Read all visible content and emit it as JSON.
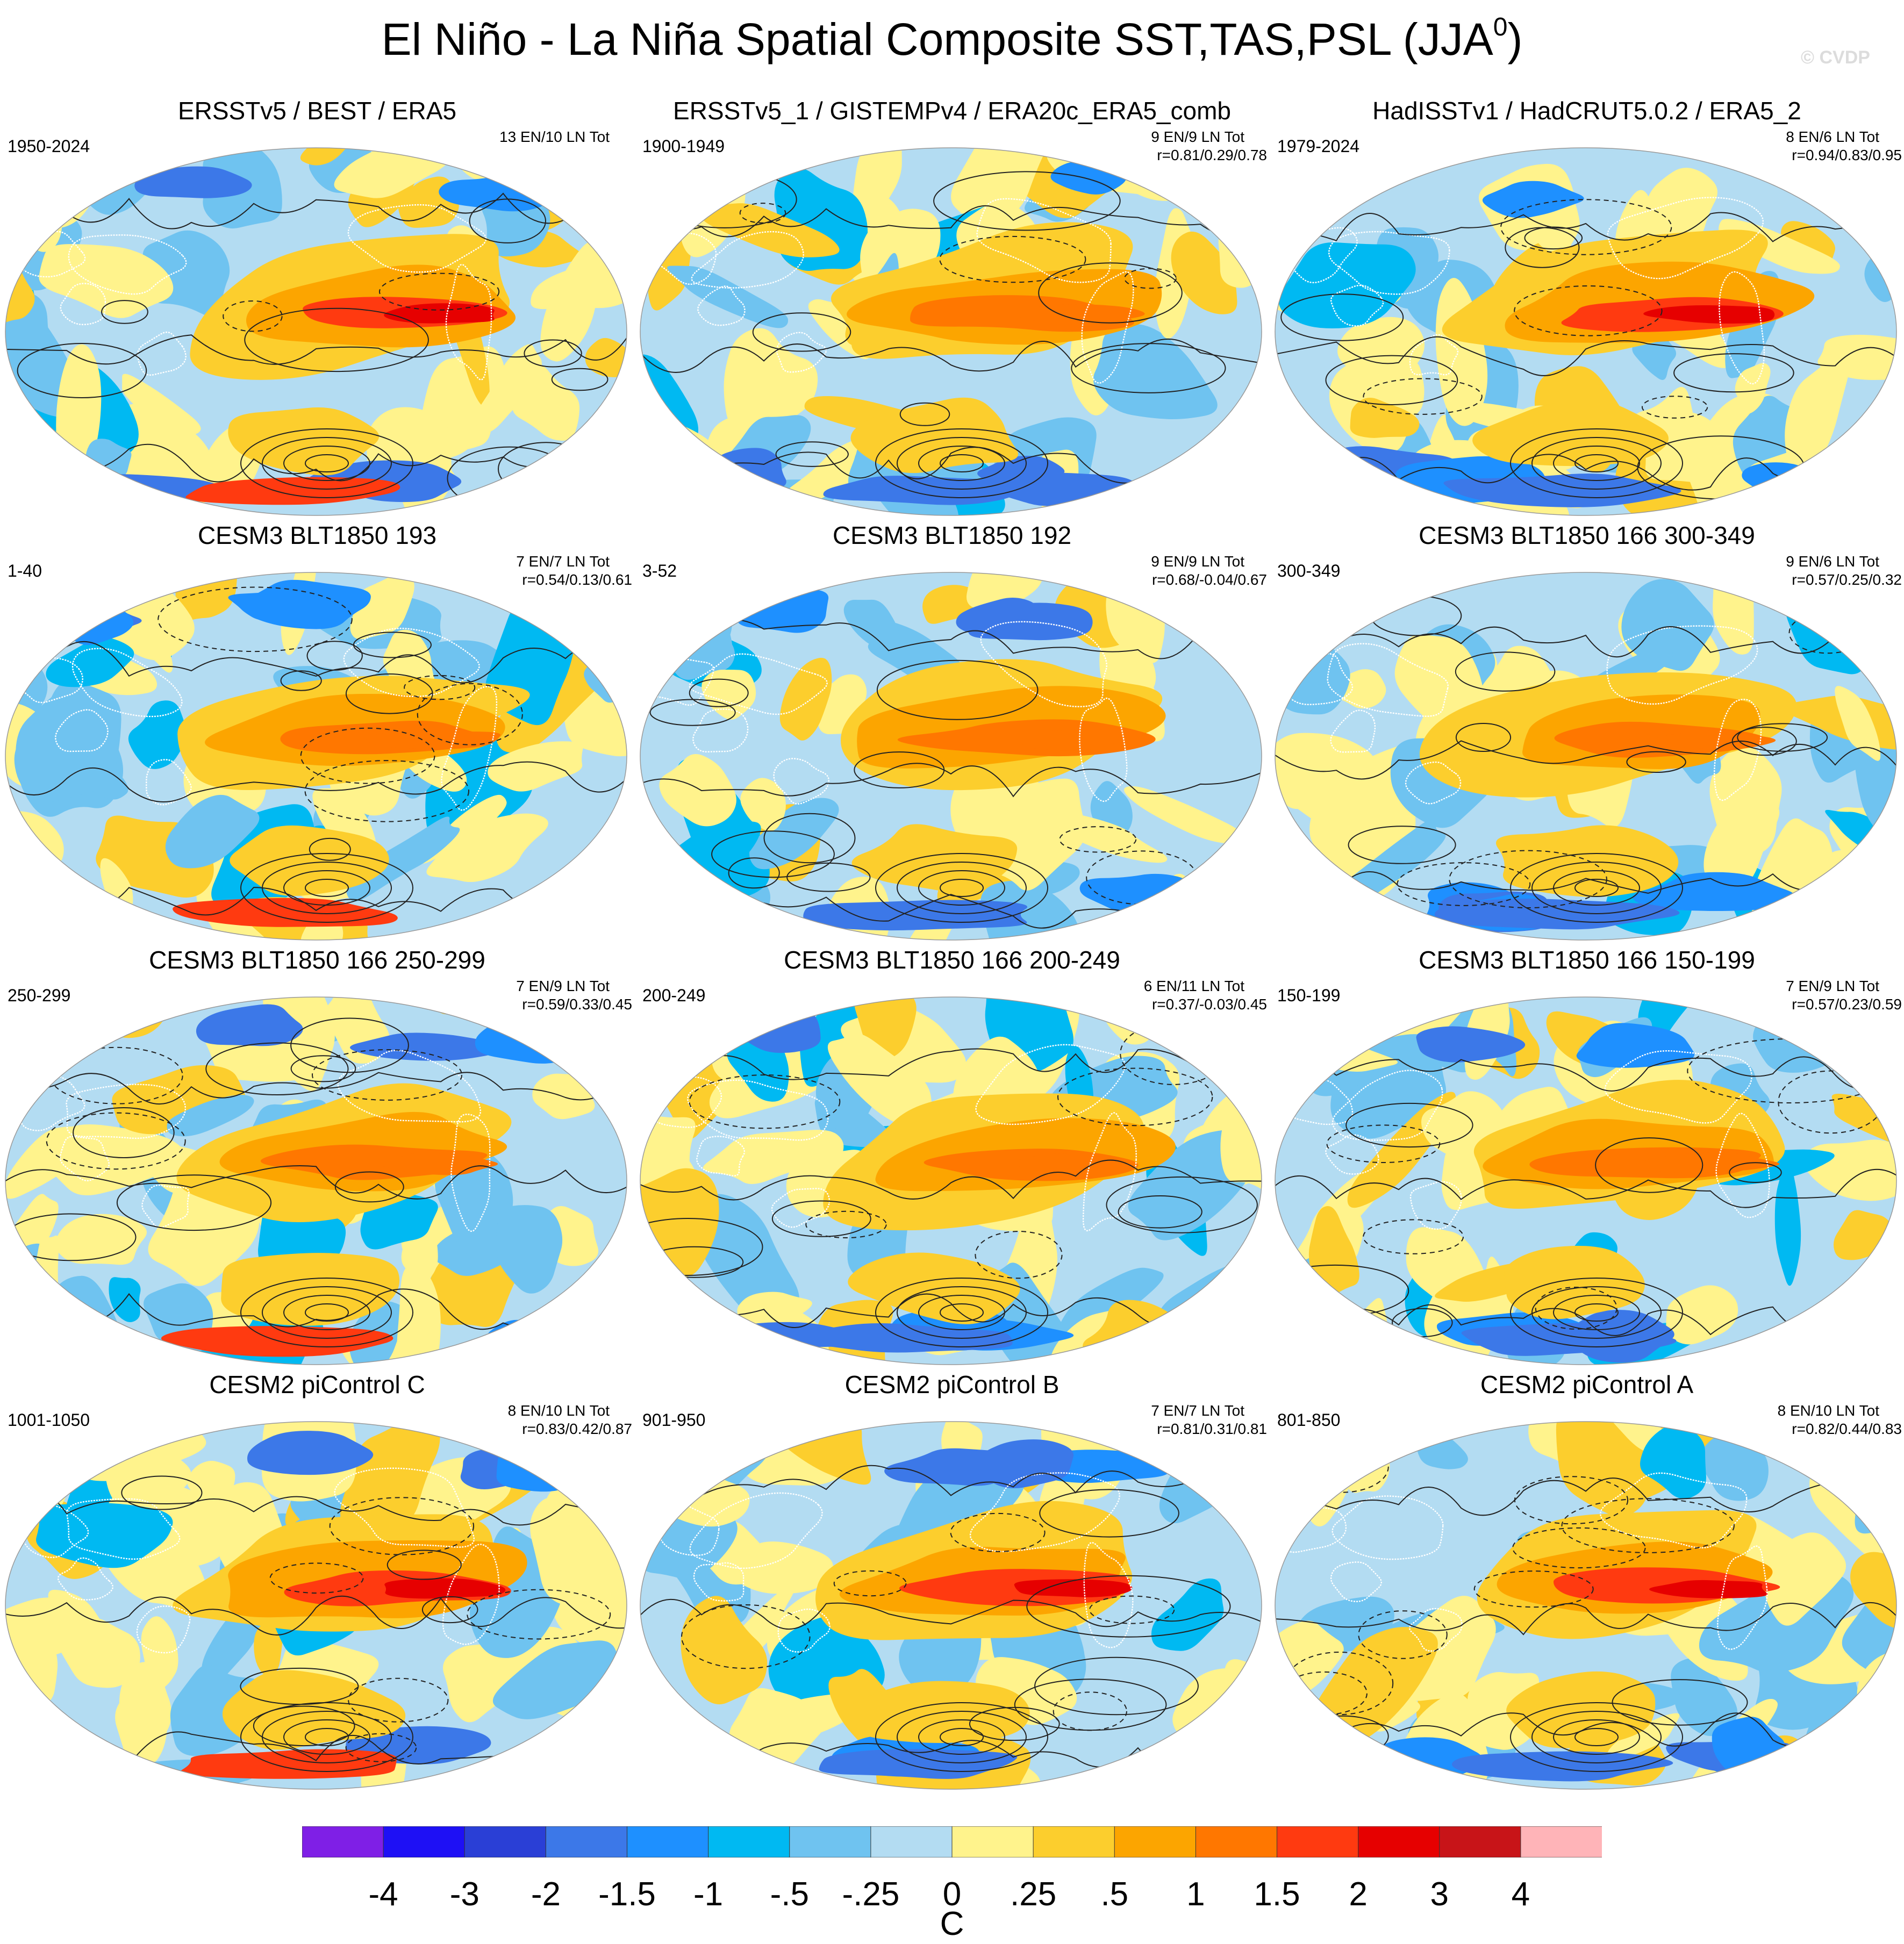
{
  "title": {
    "main": "El Niño - La Niña Spatial Composite SST,TAS,PSL (JJA",
    "superscript": "0",
    "close": ")"
  },
  "watermark": "© CVDP",
  "panels": [
    {
      "title": "ERSSTv5 / BEST / ERA5",
      "years": "1950-2024",
      "events": "13 EN/10 LN Tot",
      "corr": ""
    },
    {
      "title": "ERSSTv5_1 / GISTEMPv4 / ERA20c_ERA5_comb",
      "years": "1900-1949",
      "events": "9 EN/9 LN Tot",
      "corr": "r=0.81/0.29/0.78"
    },
    {
      "title": "HadISSTv1 / HadCRUT5.0.2 / ERA5_2",
      "years": "1979-2024",
      "events": "8 EN/6 LN Tot",
      "corr": "r=0.94/0.83/0.95"
    },
    {
      "title": "CESM3 BLT1850 193",
      "years": "1-40",
      "events": "7 EN/7 LN Tot",
      "corr": "r=0.54/0.13/0.61"
    },
    {
      "title": "CESM3 BLT1850 192",
      "years": "3-52",
      "events": "9 EN/9 LN Tot",
      "corr": "r=0.68/-0.04/0.67"
    },
    {
      "title": "CESM3 BLT1850 166 300-349",
      "years": "300-349",
      "events": "9 EN/6 LN Tot",
      "corr": "r=0.57/0.25/0.32"
    },
    {
      "title": "CESM3 BLT1850 166 250-299",
      "years": "250-299",
      "events": "7 EN/9 LN Tot",
      "corr": "r=0.59/0.33/0.45"
    },
    {
      "title": "CESM3 BLT1850 166 200-249",
      "years": "200-249",
      "events": "6 EN/11 LN Tot",
      "corr": "r=0.37/-0.03/0.45"
    },
    {
      "title": "CESM3 BLT1850 166 150-199",
      "years": "150-199",
      "events": "7 EN/9 LN Tot",
      "corr": "r=0.57/0.23/0.59"
    },
    {
      "title": "CESM2 piControl C",
      "years": "1001-1050",
      "events": "8 EN/10 LN Tot",
      "corr": "r=0.83/0.42/0.87"
    },
    {
      "title": "CESM2 piControl B",
      "years": "901-950",
      "events": "7 EN/7 LN Tot",
      "corr": "r=0.81/0.31/0.81"
    },
    {
      "title": "CESM2 piControl A",
      "years": "801-850",
      "events": "8 EN/10 LN Tot",
      "corr": "r=0.82/0.44/0.83"
    }
  ],
  "colorbar": {
    "colors": [
      "#7f1fe6",
      "#1e10f5",
      "#2a3fd6",
      "#3c78e8",
      "#1e90ff",
      "#00b9f2",
      "#6fc3f0",
      "#b3dcf2",
      "#fff38c",
      "#fcce2d",
      "#fca500",
      "#ff7700",
      "#ff3a10",
      "#e60000",
      "#c81418",
      "#ffb4b8"
    ],
    "labels": [
      "-4",
      "-3",
      "-2",
      "-1.5",
      "-1",
      "-.5",
      "-.25",
      "0",
      ".25",
      ".5",
      "1",
      "1.5",
      "2",
      "3",
      "4"
    ],
    "units": "C"
  },
  "style": {
    "ocean_base": "#b3dcf2",
    "land_outline": "#ffffff",
    "contour": "#222222"
  }
}
